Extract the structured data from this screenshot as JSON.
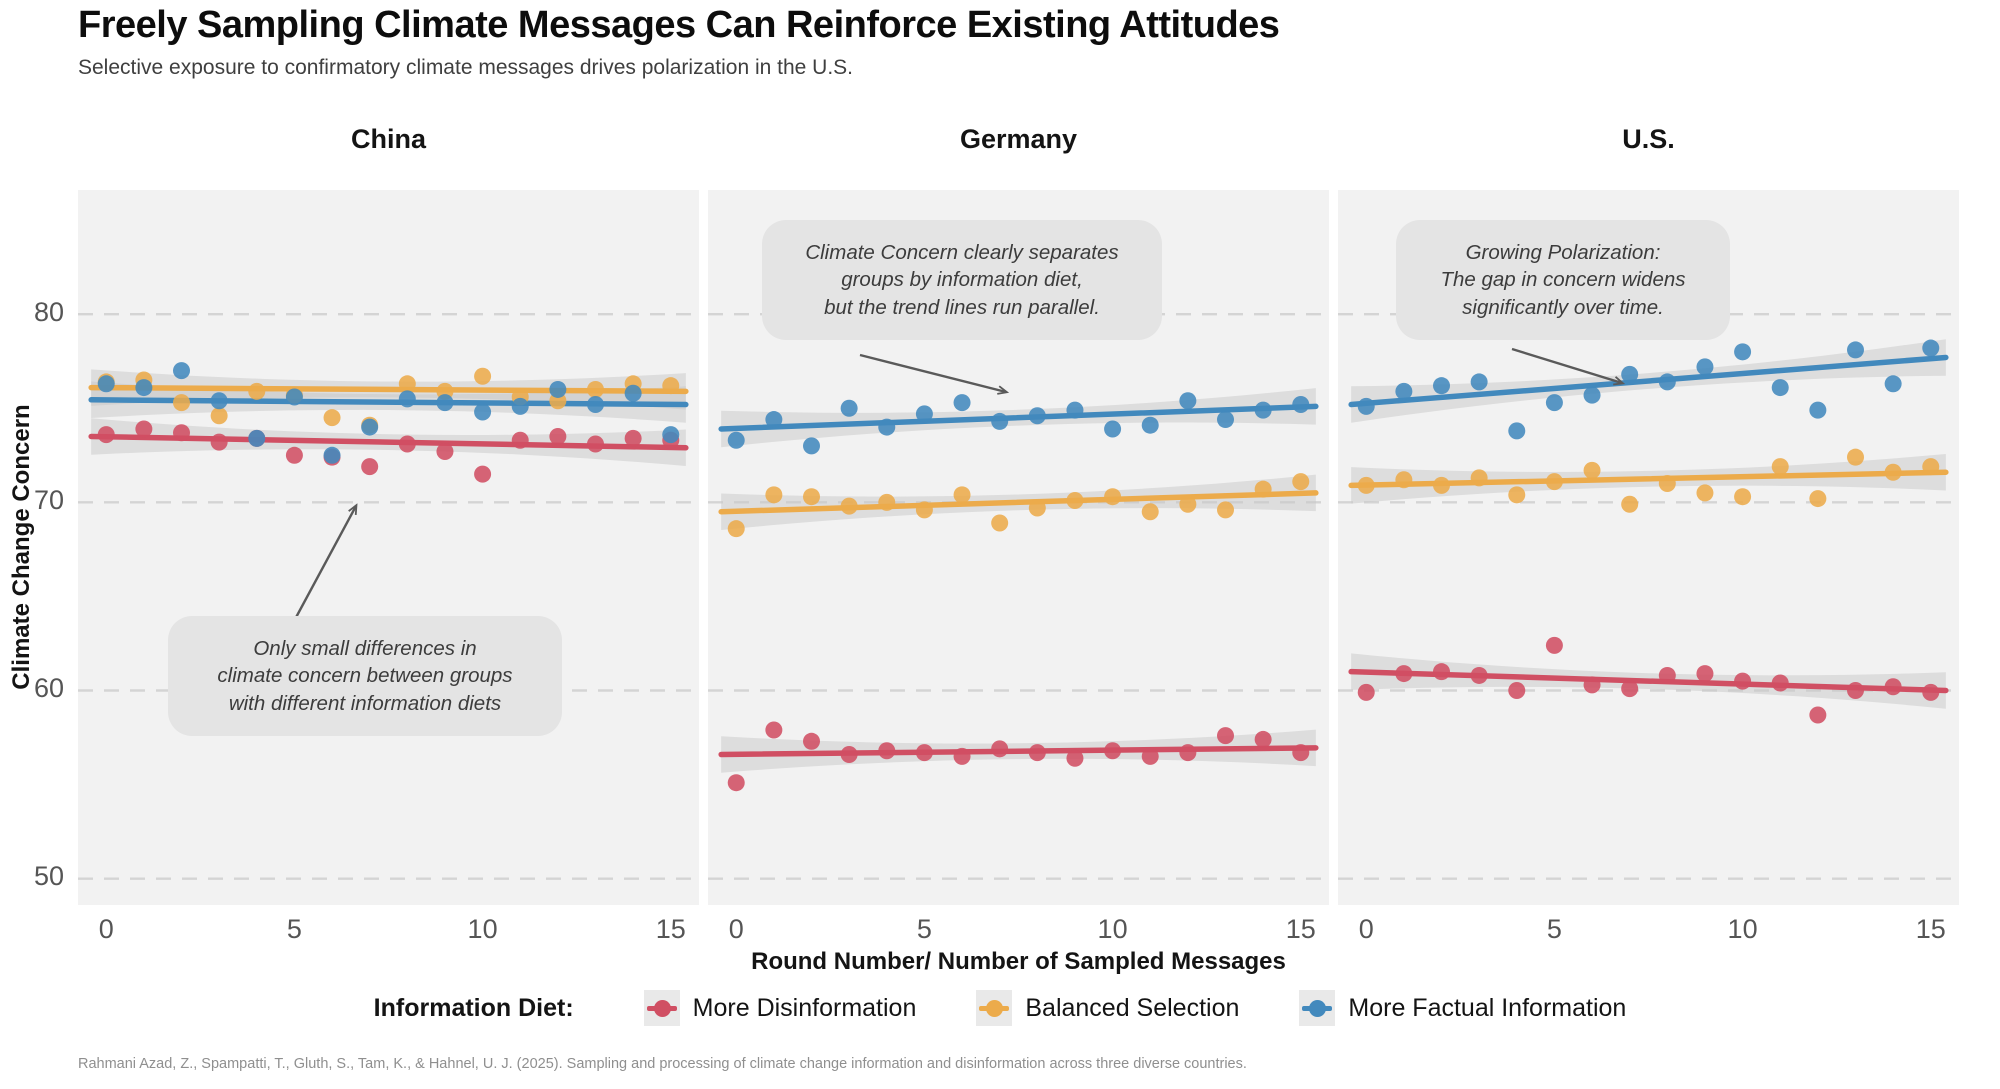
{
  "header": {
    "title": "Freely Sampling Climate Messages Can Reinforce Existing Attitudes",
    "subtitle": "Selective exposure to confirmatory climate messages drives polarization in the U.S."
  },
  "axes": {
    "y_label": "Climate Change Concern",
    "x_label": "Round Number/ Number of Sampled Messages",
    "y_ticks": [
      50,
      60,
      70,
      80
    ],
    "x_ticks": [
      0,
      5,
      10,
      15
    ]
  },
  "legend": {
    "title": "Information Diet:",
    "items": [
      {
        "label": "More Disinformation",
        "color": "#d04f63"
      },
      {
        "label": "Balanced Selection",
        "color": "#ecab4b"
      },
      {
        "label": "More Factual Information",
        "color": "#4289bd"
      }
    ]
  },
  "caption": "Rahmani Azad, Z., Spampatti, T., Gluth, S., Tam, K., & Hahnel, U. J. (2025). Sampling and processing of climate change information and disinformation across three diverse countries.",
  "colors": {
    "panel_background": "#f2f2f2",
    "gridline": "#d4d4d4",
    "ribbon": "#c8c8c8",
    "annotation_box": "#e4e4e4",
    "arrow": "#5a5a5a"
  },
  "chart_data": {
    "type": "scatter",
    "title": "Freely Sampling Climate Messages Can Reinforce Existing Attitudes",
    "xlabel": "Round Number/ Number of Sampled Messages",
    "ylabel": "Climate Change Concern",
    "x": [
      0,
      1,
      2,
      3,
      4,
      5,
      6,
      7,
      8,
      9,
      10,
      11,
      12,
      13,
      14,
      15
    ],
    "xlim": [
      -0.75,
      15.75
    ],
    "ylim": [
      48.6,
      86.6
    ],
    "grid": "horizontal-dashed-only",
    "legend_position": "bottom",
    "trend": "linear fit with shaded confidence ribbon per series",
    "panels": [
      {
        "title": "China",
        "annotation": {
          "lines": [
            "Only small differences in",
            "climate concern between groups",
            "with different information diets"
          ]
        },
        "series": [
          {
            "name": "More Disinformation",
            "color": "#d04f63",
            "values": [
              73.6,
              73.9,
              73.7,
              73.2,
              73.4,
              72.5,
              72.4,
              71.9,
              73.1,
              72.7,
              71.5,
              73.3,
              73.5,
              73.1,
              73.4,
              73.3
            ],
            "trend": [
              73.5,
              72.9
            ]
          },
          {
            "name": "Balanced Selection",
            "color": "#ecab4b",
            "values": [
              76.4,
              76.5,
              75.3,
              74.6,
              75.9,
              75.7,
              74.5,
              74.1,
              76.3,
              75.9,
              76.7,
              75.6,
              75.4,
              76.0,
              76.3,
              76.2
            ],
            "trend": [
              76.1,
              75.9
            ]
          },
          {
            "name": "More Factual Information",
            "color": "#4289bd",
            "values": [
              76.3,
              76.1,
              77.0,
              75.4,
              73.4,
              75.6,
              72.5,
              74.0,
              75.5,
              75.3,
              74.8,
              75.1,
              76.0,
              75.2,
              75.8,
              73.6
            ],
            "trend": [
              75.45,
              75.2
            ]
          }
        ]
      },
      {
        "title": "Germany",
        "annotation": {
          "lines": [
            "Climate Concern clearly separates",
            "groups by information diet,",
            "but the trend lines run parallel."
          ]
        },
        "series": [
          {
            "name": "More Disinformation",
            "color": "#d04f63",
            "values": [
              55.1,
              57.9,
              57.3,
              56.6,
              56.8,
              56.7,
              56.5,
              56.9,
              56.7,
              56.4,
              56.8,
              56.5,
              56.7,
              57.6,
              57.4,
              56.7
            ],
            "trend": [
              56.6,
              56.95
            ]
          },
          {
            "name": "Balanced Selection",
            "color": "#ecab4b",
            "values": [
              68.6,
              70.4,
              70.3,
              69.8,
              70.0,
              69.6,
              70.4,
              68.9,
              69.7,
              70.1,
              70.3,
              69.5,
              69.9,
              69.6,
              70.7,
              71.1
            ],
            "trend": [
              69.5,
              70.5
            ]
          },
          {
            "name": "More Factual Information",
            "color": "#4289bd",
            "values": [
              73.3,
              74.4,
              73.0,
              75.0,
              74.0,
              74.7,
              75.3,
              74.3,
              74.6,
              74.9,
              73.9,
              74.1,
              75.4,
              74.4,
              74.9,
              75.2
            ],
            "trend": [
              73.9,
              75.1
            ]
          }
        ]
      },
      {
        "title": "U.S.",
        "annotation": {
          "lines": [
            "Growing Polarization:",
            "The gap in concern widens",
            "significantly over time."
          ]
        },
        "series": [
          {
            "name": "More Disinformation",
            "color": "#d04f63",
            "values": [
              59.9,
              60.9,
              61.0,
              60.8,
              60.0,
              62.4,
              60.3,
              60.1,
              60.8,
              60.9,
              60.5,
              60.4,
              58.7,
              60.0,
              60.2,
              59.9
            ],
            "trend": [
              61.0,
              60.0
            ]
          },
          {
            "name": "Balanced Selection",
            "color": "#ecab4b",
            "values": [
              70.9,
              71.2,
              70.9,
              71.3,
              70.4,
              71.1,
              71.7,
              69.9,
              71.0,
              70.5,
              70.3,
              71.9,
              70.2,
              72.4,
              71.6,
              71.9
            ],
            "trend": [
              70.9,
              71.6
            ]
          },
          {
            "name": "More Factual Information",
            "color": "#4289bd",
            "values": [
              75.1,
              75.9,
              76.2,
              76.4,
              73.8,
              75.3,
              75.7,
              76.8,
              76.4,
              77.2,
              78.0,
              76.1,
              74.9,
              78.1,
              76.3,
              78.2
            ],
            "trend": [
              75.2,
              77.7
            ]
          }
        ]
      }
    ]
  }
}
